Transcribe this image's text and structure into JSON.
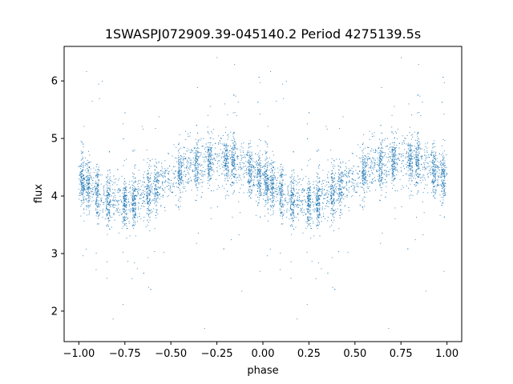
{
  "chart_data": {
    "type": "scatter",
    "title": "1SWASPJ072909.39-045140.2 Period 4275139.5s",
    "xlabel": "phase",
    "ylabel": "flux",
    "xlim": [
      -1.08,
      1.08
    ],
    "ylim": [
      1.47,
      6.6
    ],
    "xticks": [
      -1.0,
      -0.75,
      -0.5,
      -0.25,
      0.0,
      0.25,
      0.5,
      0.75,
      1.0
    ],
    "xtick_labels": [
      "−1.00",
      "−0.75",
      "−0.50",
      "−0.25",
      "0.00",
      "0.25",
      "0.50",
      "0.75",
      "1.00"
    ],
    "yticks": [
      2,
      3,
      4,
      5,
      6
    ],
    "ytick_labels": [
      "2",
      "3",
      "4",
      "5",
      "6"
    ],
    "grid": false,
    "legend": "none",
    "marker_color": "#1f77b4",
    "phase_folded": true,
    "trend_phase": [
      0.0,
      0.05,
      0.1,
      0.15,
      0.2,
      0.25,
      0.3,
      0.35,
      0.4,
      0.45,
      0.5,
      0.55,
      0.6,
      0.65,
      0.7,
      0.75,
      0.8,
      0.85,
      0.9,
      0.95,
      1.0
    ],
    "trend_flux": [
      4.35,
      4.2,
      4.05,
      3.95,
      3.9,
      3.88,
      3.9,
      4.0,
      4.1,
      4.2,
      4.3,
      4.4,
      4.5,
      4.55,
      4.6,
      4.62,
      4.65,
      4.6,
      4.5,
      4.4,
      4.35
    ],
    "flux_scatter_sd": 0.22,
    "flux_range": [
      1.7,
      6.5
    ],
    "observation_columns_phase": [
      0.02,
      0.05,
      0.1,
      0.16,
      0.25,
      0.3,
      0.38,
      0.42,
      0.55,
      0.64,
      0.71,
      0.8,
      0.84,
      0.93,
      0.98
    ]
  }
}
